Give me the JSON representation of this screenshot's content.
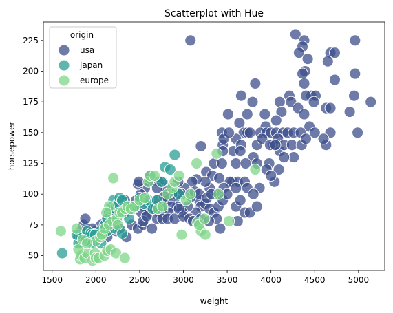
{
  "chart_data": {
    "type": "scatter",
    "title": "Scatterplot with Hue",
    "xlabel": "weight",
    "ylabel": "horsepower",
    "xlim": [
      1400,
      5300
    ],
    "ylim": [
      38,
      240
    ],
    "xticks": [
      1500,
      2000,
      2500,
      3000,
      3500,
      4000,
      4500,
      5000
    ],
    "yticks": [
      50,
      75,
      100,
      125,
      150,
      175,
      200,
      225
    ],
    "grid": false,
    "legend": {
      "title": "origin",
      "placement": "top-left"
    },
    "series": [
      {
        "name": "usa",
        "color": "#3e4f8c",
        "points": [
          [
            3080,
            225
          ],
          [
            4280,
            230
          ],
          [
            4380,
            225
          ],
          [
            4360,
            220
          ],
          [
            4320,
            215
          ],
          [
            4680,
            215
          ],
          [
            4730,
            215
          ],
          [
            4960,
            225
          ],
          [
            4650,
            208
          ],
          [
            4390,
            200
          ],
          [
            4420,
            210
          ],
          [
            4360,
            198
          ],
          [
            4960,
            198
          ],
          [
            4730,
            193
          ],
          [
            3820,
            190
          ],
          [
            4380,
            190
          ],
          [
            4460,
            180
          ],
          [
            4400,
            180
          ],
          [
            4510,
            180
          ],
          [
            4950,
            180
          ],
          [
            4210,
            180
          ],
          [
            3660,
            180
          ],
          [
            3790,
            175
          ],
          [
            4100,
            175
          ],
          [
            4230,
            175
          ],
          [
            4490,
            175
          ],
          [
            4310,
            170
          ],
          [
            4630,
            170
          ],
          [
            4680,
            170
          ],
          [
            5140,
            175
          ],
          [
            4900,
            167
          ],
          [
            3510,
            165
          ],
          [
            3730,
            165
          ],
          [
            4120,
            167
          ],
          [
            4060,
            160
          ],
          [
            3930,
            165
          ],
          [
            4380,
            165
          ],
          [
            3640,
            158
          ],
          [
            3940,
            155
          ],
          [
            4440,
            155
          ],
          [
            3690,
            150
          ],
          [
            3730,
            150
          ],
          [
            3760,
            150
          ],
          [
            3880,
            150
          ],
          [
            3950,
            150
          ],
          [
            4000,
            150
          ],
          [
            4060,
            150
          ],
          [
            4140,
            150
          ],
          [
            4190,
            150
          ],
          [
            4260,
            150
          ],
          [
            4340,
            150
          ],
          [
            4500,
            150
          ],
          [
            4680,
            150
          ],
          [
            4990,
            150
          ],
          [
            3440,
            150
          ],
          [
            3450,
            140
          ],
          [
            3460,
            145
          ],
          [
            3600,
            145
          ],
          [
            3570,
            135
          ],
          [
            3660,
            140
          ],
          [
            3840,
            140
          ],
          [
            3900,
            145
          ],
          [
            4030,
            140
          ],
          [
            4080,
            145
          ],
          [
            4100,
            135
          ],
          [
            4150,
            140
          ],
          [
            4240,
            140
          ],
          [
            4350,
            140
          ],
          [
            4400,
            145
          ],
          [
            4630,
            140
          ],
          [
            4600,
            145
          ],
          [
            3200,
            139
          ],
          [
            3450,
            135
          ],
          [
            3650,
            135
          ],
          [
            3800,
            130
          ],
          [
            4260,
            130
          ],
          [
            3980,
            125
          ],
          [
            3990,
            140
          ],
          [
            4050,
            140
          ],
          [
            3350,
            125
          ],
          [
            3440,
            125
          ],
          [
            3600,
            125
          ],
          [
            3710,
            125
          ],
          [
            3950,
            120
          ],
          [
            4090,
            120
          ],
          [
            4150,
            130
          ],
          [
            3260,
            118
          ],
          [
            3330,
            115
          ],
          [
            3410,
            113
          ],
          [
            3560,
            110
          ],
          [
            3620,
            110
          ],
          [
            3700,
            110
          ],
          [
            3730,
            105
          ],
          [
            3870,
            105
          ],
          [
            4040,
            110
          ],
          [
            3530,
            110
          ],
          [
            3460,
            105
          ],
          [
            3380,
            100
          ],
          [
            3300,
            105
          ],
          [
            3250,
            110
          ],
          [
            3150,
            112
          ],
          [
            3100,
            110
          ],
          [
            3010,
            105
          ],
          [
            2980,
            100
          ],
          [
            2950,
            100
          ],
          [
            2900,
            97
          ],
          [
            2870,
            100
          ],
          [
            2820,
            95
          ],
          [
            2800,
            105
          ],
          [
            2760,
            110
          ],
          [
            2720,
            110
          ],
          [
            2700,
            105
          ],
          [
            2600,
            110
          ],
          [
            2620,
            115
          ],
          [
            2560,
            105
          ],
          [
            2510,
            100
          ],
          [
            2480,
            108
          ],
          [
            3180,
            95
          ],
          [
            3200,
            90
          ],
          [
            3250,
            92
          ],
          [
            3300,
            88
          ],
          [
            3350,
            85
          ],
          [
            3400,
            90
          ],
          [
            3450,
            95
          ],
          [
            3500,
            100
          ],
          [
            3600,
            90
          ],
          [
            3650,
            95
          ],
          [
            3700,
            85
          ],
          [
            3760,
            85
          ],
          [
            3840,
            90
          ],
          [
            3620,
            78
          ],
          [
            3420,
            72
          ],
          [
            3380,
            80
          ],
          [
            3140,
            85
          ],
          [
            3050,
            90
          ],
          [
            2990,
            85
          ],
          [
            2930,
            90
          ],
          [
            2860,
            90
          ],
          [
            2830,
            85
          ],
          [
            2760,
            88
          ],
          [
            2720,
            85
          ],
          [
            2680,
            90
          ],
          [
            2640,
            88
          ],
          [
            2600,
            84
          ],
          [
            2560,
            90
          ],
          [
            2520,
            85
          ],
          [
            2460,
            95
          ],
          [
            2420,
            88
          ],
          [
            2380,
            90
          ],
          [
            2340,
            86
          ],
          [
            2300,
            85
          ],
          [
            2270,
            82
          ],
          [
            2220,
            88
          ],
          [
            2180,
            80
          ],
          [
            2150,
            85
          ],
          [
            2120,
            78
          ],
          [
            2060,
            75
          ],
          [
            2000,
            70
          ],
          [
            1990,
            65
          ],
          [
            1960,
            72
          ],
          [
            1930,
            67
          ],
          [
            1900,
            65
          ],
          [
            1860,
            75
          ],
          [
            1830,
            70
          ],
          [
            1800,
            65
          ],
          [
            2020,
            68
          ],
          [
            2130,
            65
          ],
          [
            2230,
            70
          ],
          [
            2270,
            72
          ],
          [
            2350,
            65
          ],
          [
            2410,
            75
          ],
          [
            2480,
            72
          ],
          [
            2540,
            75
          ],
          [
            2640,
            72
          ],
          [
            2700,
            80
          ],
          [
            2760,
            80
          ],
          [
            2820,
            80
          ],
          [
            2900,
            80
          ],
          [
            2950,
            88
          ],
          [
            3000,
            82
          ],
          [
            3070,
            80
          ],
          [
            3110,
            78
          ],
          [
            3200,
            80
          ],
          [
            3290,
            78
          ],
          [
            2540,
            78
          ],
          [
            2580,
            82
          ],
          [
            1880,
            80
          ],
          [
            2490,
            110
          ],
          [
            2330,
            95
          ],
          [
            2700,
            95
          ],
          [
            2780,
            98
          ],
          [
            2940,
            110
          ],
          [
            3090,
            98
          ],
          [
            3130,
            102
          ],
          [
            3180,
            100
          ],
          [
            3270,
            97
          ],
          [
            3320,
            100
          ],
          [
            3600,
            105
          ],
          [
            3800,
            100
          ],
          [
            4000,
            115
          ],
          [
            3520,
            150
          ],
          [
            3840,
            125
          ]
        ]
      },
      {
        "name": "japan",
        "color": "#2a9d94",
        "points": [
          [
            1615,
            52
          ],
          [
            1800,
            60
          ],
          [
            1830,
            65
          ],
          [
            1850,
            65
          ],
          [
            1900,
            70
          ],
          [
            1940,
            68
          ],
          [
            1960,
            60
          ],
          [
            2000,
            65
          ],
          [
            2020,
            67
          ],
          [
            2050,
            70
          ],
          [
            2100,
            75
          ],
          [
            2130,
            80
          ],
          [
            2160,
            88
          ],
          [
            2200,
            95
          ],
          [
            2230,
            90
          ],
          [
            2250,
            92
          ],
          [
            2270,
            97
          ],
          [
            2300,
            95
          ],
          [
            2340,
            85
          ],
          [
            2380,
            80
          ],
          [
            2400,
            88
          ],
          [
            2450,
            90
          ],
          [
            2500,
            97
          ],
          [
            2550,
            92
          ],
          [
            2600,
            95
          ],
          [
            2650,
            88
          ],
          [
            2700,
            95
          ],
          [
            2750,
            110
          ],
          [
            2790,
            122
          ],
          [
            2850,
            120
          ],
          [
            2900,
            132
          ],
          [
            2950,
            100
          ],
          [
            2130,
            70
          ],
          [
            2180,
            75
          ],
          [
            2220,
            72
          ],
          [
            2300,
            68
          ],
          [
            1780,
            67
          ],
          [
            1880,
            62
          ],
          [
            2010,
            62
          ],
          [
            2060,
            60
          ],
          [
            1960,
            67
          ],
          [
            1990,
            67
          ]
        ]
      },
      {
        "name": "europe",
        "color": "#7dd688",
        "points": [
          [
            1600,
            70
          ],
          [
            1780,
            72
          ],
          [
            1820,
            47
          ],
          [
            1830,
            50
          ],
          [
            1870,
            48
          ],
          [
            1900,
            52
          ],
          [
            1960,
            46
          ],
          [
            1990,
            52
          ],
          [
            2000,
            48
          ],
          [
            2030,
            48
          ],
          [
            2100,
            50
          ],
          [
            2130,
            54
          ],
          [
            2170,
            55
          ],
          [
            2200,
            113
          ],
          [
            2230,
            52
          ],
          [
            2330,
            48
          ],
          [
            2000,
            62
          ],
          [
            2050,
            65
          ],
          [
            2070,
            67
          ],
          [
            2100,
            72
          ],
          [
            2150,
            75
          ],
          [
            2190,
            78
          ],
          [
            2240,
            80
          ],
          [
            2270,
            85
          ],
          [
            2300,
            85
          ],
          [
            2340,
            88
          ],
          [
            2360,
            90
          ],
          [
            2400,
            88
          ],
          [
            2440,
            90
          ],
          [
            2500,
            95
          ],
          [
            2560,
            97
          ],
          [
            2600,
            110
          ],
          [
            2620,
            115
          ],
          [
            2670,
            115
          ],
          [
            2710,
            88
          ],
          [
            2760,
            90
          ],
          [
            2820,
            100
          ],
          [
            2870,
            105
          ],
          [
            2900,
            110
          ],
          [
            2950,
            115
          ],
          [
            2980,
            67
          ],
          [
            3030,
            95
          ],
          [
            3080,
            100
          ],
          [
            3150,
            125
          ],
          [
            3160,
            77
          ],
          [
            3200,
            70
          ],
          [
            3250,
            67
          ],
          [
            3380,
            133
          ],
          [
            3400,
            100
          ],
          [
            3520,
            78
          ],
          [
            3820,
            120
          ],
          [
            1800,
            55
          ],
          [
            1850,
            63
          ],
          [
            1900,
            60
          ],
          [
            2150,
            90
          ],
          [
            2120,
            85
          ],
          [
            2250,
            75
          ],
          [
            3180,
            75
          ],
          [
            3240,
            80
          ]
        ]
      }
    ]
  }
}
